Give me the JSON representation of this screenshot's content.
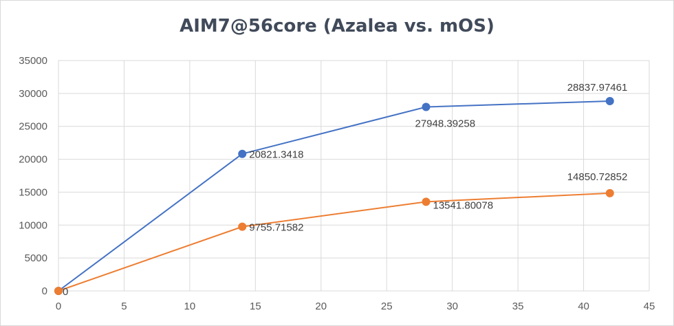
{
  "chart_data": {
    "type": "line",
    "title": "AIM7@56core (Azalea vs. mOS)",
    "xlabel": "",
    "ylabel": "",
    "xlim": [
      0,
      45
    ],
    "ylim": [
      0,
      35000
    ],
    "xticks": [
      0,
      5,
      10,
      15,
      20,
      25,
      30,
      35,
      40,
      45
    ],
    "yticks": [
      0,
      5000,
      10000,
      15000,
      20000,
      25000,
      30000,
      35000
    ],
    "grid": true,
    "legend": "none",
    "series": [
      {
        "color": "#4472c4",
        "points": [
          {
            "x": 0,
            "y": 0,
            "label": ""
          },
          {
            "x": 14,
            "y": 20821.3418,
            "label": "20821.3418"
          },
          {
            "x": 28,
            "y": 27948.39258,
            "label": "27948.39258"
          },
          {
            "x": 42,
            "y": 28837.97461,
            "label": "28837.97461"
          }
        ]
      },
      {
        "color": "#ed7d31",
        "points": [
          {
            "x": 0,
            "y": 0,
            "label": "0"
          },
          {
            "x": 14,
            "y": 9755.71582,
            "label": "9755.71582"
          },
          {
            "x": 28,
            "y": 13541.80078,
            "label": "13541.80078"
          },
          {
            "x": 42,
            "y": 14850.72852,
            "label": "14850.72852"
          }
        ]
      }
    ]
  }
}
